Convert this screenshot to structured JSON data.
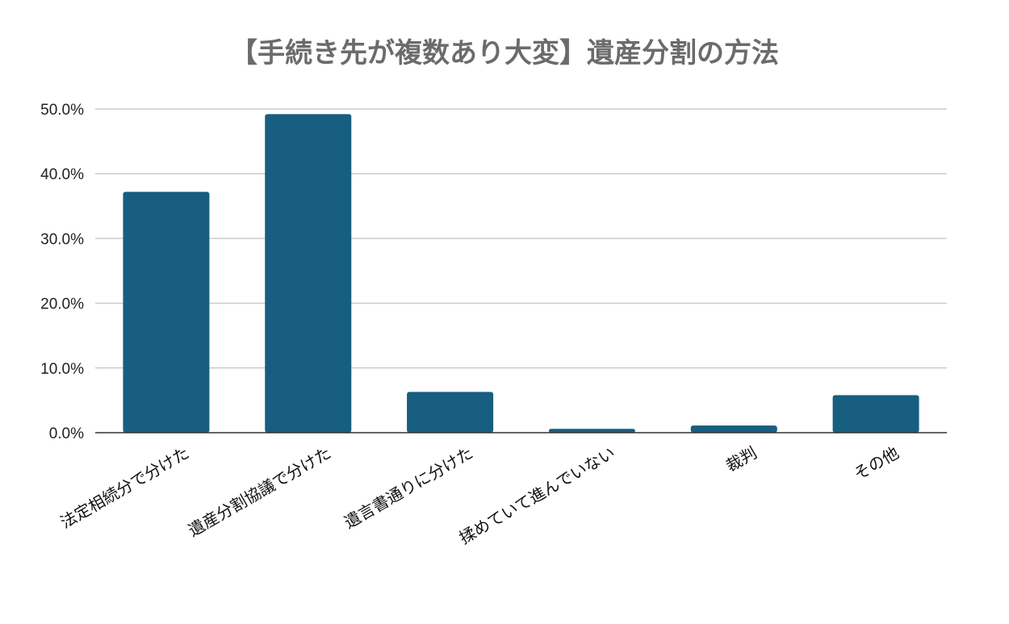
{
  "chart_data": {
    "type": "bar",
    "title": "【手続き先が複数あり大変】遺産分割の方法",
    "categories": [
      "法定相続分で分けた",
      "遺産分割協議で分けた",
      "遺言書通りに分けた",
      "揉めていて進んでいない",
      "裁判",
      "その他"
    ],
    "values": [
      37.2,
      49.2,
      6.3,
      0.6,
      1.1,
      5.8
    ],
    "ylim": [
      0,
      50
    ],
    "yticks": [
      0,
      10,
      20,
      30,
      40,
      50
    ],
    "ytick_labels": [
      "0.0%",
      "10.0%",
      "20.0%",
      "30.0%",
      "40.0%",
      "50.0%"
    ],
    "xlabel": "",
    "ylabel": "",
    "grid": true,
    "bar_color": "#175e80"
  }
}
